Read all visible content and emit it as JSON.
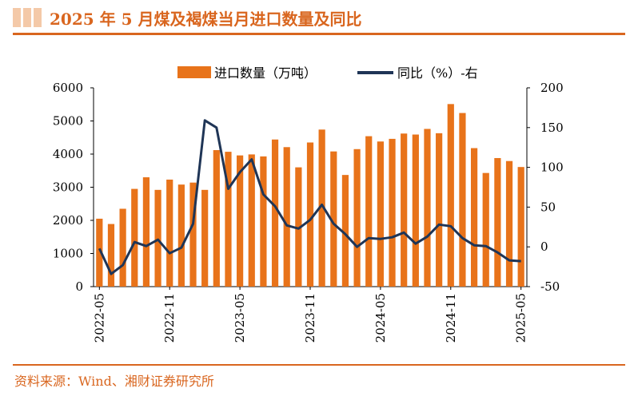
{
  "header": {
    "title": "2025 年 5 月煤及褐煤当月进口数量及同比"
  },
  "footer": {
    "source": "资料来源：Wind、湘财证券研究所"
  },
  "colors": {
    "accent": "#d9661f",
    "bar": "#e8731a",
    "line": "#1f3556",
    "logo_light": "#f4c9a8"
  },
  "chart_data": {
    "type": "bar",
    "title": "",
    "legend_position": "top-center",
    "grid": false,
    "x": [
      "2022-05",
      "2022-06",
      "2022-07",
      "2022-08",
      "2022-09",
      "2022-10",
      "2022-11",
      "2022-12",
      "2023-01",
      "2023-02",
      "2023-03",
      "2023-04",
      "2023-05",
      "2023-06",
      "2023-07",
      "2023-08",
      "2023-09",
      "2023-10",
      "2023-11",
      "2023-12",
      "2024-01",
      "2024-02",
      "2024-03",
      "2024-04",
      "2024-05",
      "2024-06",
      "2024-07",
      "2024-08",
      "2024-09",
      "2024-10",
      "2024-11",
      "2024-12",
      "2025-01",
      "2025-02",
      "2025-03",
      "2025-04",
      "2025-05"
    ],
    "x_tick_labels": [
      "2022-05",
      "2022-11",
      "2023-05",
      "2023-11",
      "2024-05",
      "2024-11",
      "2025-05"
    ],
    "series": [
      {
        "name": "进口数量（万吨）",
        "type": "bar",
        "axis": "left",
        "values": [
          2050,
          1890,
          2350,
          2950,
          3300,
          2920,
          3230,
          3080,
          3140,
          2920,
          4120,
          4070,
          3960,
          3990,
          3930,
          4440,
          4210,
          3600,
          4350,
          4740,
          4080,
          3370,
          4150,
          4540,
          4380,
          4460,
          4620,
          4590,
          4760,
          4630,
          5510,
          5240,
          4180,
          3430,
          3880,
          3790,
          3610
        ]
      },
      {
        "name": "同比（%）-右",
        "type": "line",
        "axis": "right",
        "values": [
          -2,
          -34,
          -23,
          6,
          1,
          9,
          -8,
          -1,
          29,
          159,
          150,
          73,
          94,
          110,
          66,
          51,
          27,
          23,
          34,
          53,
          29,
          16,
          0,
          11,
          10,
          12,
          18,
          4,
          13,
          28,
          26,
          11,
          2,
          1,
          -7,
          -17,
          -18
        ]
      }
    ],
    "y_left": {
      "min": 0,
      "max": 6000,
      "ticks": [
        0,
        1000,
        2000,
        3000,
        4000,
        5000,
        6000
      ]
    },
    "y_right": {
      "min": -50,
      "max": 200,
      "ticks": [
        -50,
        0,
        50,
        100,
        150,
        200
      ]
    }
  }
}
